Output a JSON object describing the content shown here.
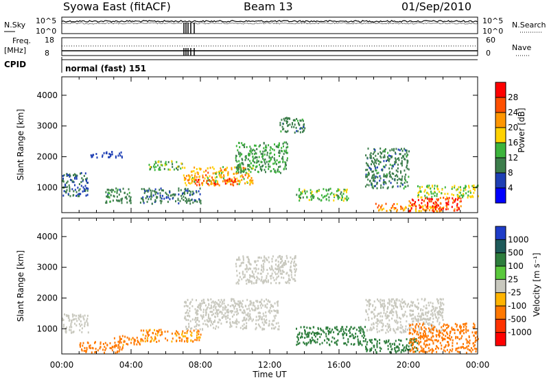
{
  "header": {
    "station": "Syowa East (fitACF)",
    "beam": "Beam 13",
    "date": "01/Sep/2010"
  },
  "status_panels": {
    "nsky_label": "N.Sky",
    "nsearch_label": "N.Search",
    "noise_tick_top": "10^5",
    "noise_tick_bottom": "10^0",
    "freq_label_1": "Freq.",
    "freq_label_2": "[MHz]",
    "freq_tick_top": "18",
    "freq_tick_bottom": "8",
    "nave_label": "Nave",
    "nave_tick_top": "60",
    "nave_tick_bottom": "0",
    "cpid_label": "CPID",
    "cpid_value": "normal (fast) 151"
  },
  "chart_data": [
    {
      "type": "heatmap",
      "name": "Power",
      "ylabel": "Slant Range [km]",
      "xlabel": "Time UT",
      "x_ticks": [
        "00:00",
        "04:00",
        "08:00",
        "12:00",
        "16:00",
        "20:00",
        "00:00"
      ],
      "y_ticks": [
        1000,
        2000,
        3000,
        4000
      ],
      "ylim": [
        180,
        4600
      ],
      "xlim_hours": [
        0,
        24
      ],
      "colorbar": {
        "label": "Power [dB]",
        "ticks": [
          4,
          8,
          12,
          16,
          20,
          24,
          28
        ],
        "range": [
          0,
          32
        ],
        "colors": [
          "#0000ff",
          "#1e3fb4",
          "#3c7d4b",
          "#3cb43c",
          "#ffd200",
          "#ff9600",
          "#ff5000",
          "#ff0000"
        ]
      },
      "regions": [
        {
          "t0": 0.0,
          "t1": 1.5,
          "r0": 700,
          "r1": 1500,
          "value": 8
        },
        {
          "t0": 1.6,
          "t1": 3.5,
          "r0": 2000,
          "r1": 2200,
          "value": 6
        },
        {
          "t0": 2.5,
          "t1": 4.0,
          "r0": 500,
          "r1": 1000,
          "value": 10
        },
        {
          "t0": 4.5,
          "t1": 8.0,
          "r0": 500,
          "r1": 1000,
          "value": 9
        },
        {
          "t0": 5.0,
          "t1": 7.0,
          "r0": 1600,
          "r1": 1900,
          "value": 14
        },
        {
          "t0": 7.0,
          "t1": 11.0,
          "r0": 1100,
          "r1": 1700,
          "value": 20
        },
        {
          "t0": 7.5,
          "t1": 10.0,
          "r0": 1100,
          "r1": 1300,
          "value": 26
        },
        {
          "t0": 10.0,
          "t1": 13.0,
          "r0": 1500,
          "r1": 2500,
          "value": 12
        },
        {
          "t0": 12.5,
          "t1": 14.0,
          "r0": 2800,
          "r1": 3300,
          "value": 10
        },
        {
          "t0": 13.5,
          "t1": 16.5,
          "r0": 600,
          "r1": 1000,
          "value": 14
        },
        {
          "t0": 17.5,
          "t1": 20.0,
          "r0": 1000,
          "r1": 2300,
          "value": 10
        },
        {
          "t0": 18.0,
          "t1": 22.0,
          "r0": 250,
          "r1": 500,
          "value": 22
        },
        {
          "t0": 20.0,
          "t1": 23.0,
          "r0": 250,
          "r1": 700,
          "value": 28
        },
        {
          "t0": 20.5,
          "t1": 24.0,
          "r0": 700,
          "r1": 1100,
          "value": 16
        }
      ]
    },
    {
      "type": "heatmap",
      "name": "Velocity",
      "ylabel": "Slant Range [km]",
      "xlabel": "Time UT",
      "x_ticks": [
        "00:00",
        "04:00",
        "08:00",
        "12:00",
        "16:00",
        "20:00",
        "00:00"
      ],
      "y_ticks": [
        1000,
        2000,
        3000,
        4000
      ],
      "ylim": [
        180,
        4600
      ],
      "xlim_hours": [
        0,
        24
      ],
      "colorbar": {
        "label": "Velocity [m s⁻¹]",
        "ticks": [
          "1000",
          "500",
          "100",
          "25",
          "-25",
          "-100",
          "-500",
          "-1000"
        ],
        "colors": [
          "#1e3cc8",
          "#1e5a5a",
          "#2d7d3c",
          "#5ac83c",
          "#c8c8be",
          "#ffb400",
          "#ff7800",
          "#ff3200",
          "#ff0000"
        ]
      },
      "regions": [
        {
          "t0": 0.0,
          "t1": 1.5,
          "r0": 900,
          "r1": 1500,
          "value": 0
        },
        {
          "t0": 1.0,
          "t1": 3.5,
          "r0": 250,
          "r1": 600,
          "value": -150
        },
        {
          "t0": 3.0,
          "t1": 4.5,
          "r0": 500,
          "r1": 800,
          "value": -120
        },
        {
          "t0": 4.5,
          "t1": 8.0,
          "r0": 600,
          "r1": 1000,
          "value": -110
        },
        {
          "t0": 7.0,
          "t1": 12.5,
          "r0": 1000,
          "r1": 2000,
          "value": 0
        },
        {
          "t0": 10.0,
          "t1": 13.5,
          "r0": 2500,
          "r1": 3400,
          "value": 5
        },
        {
          "t0": 13.5,
          "t1": 17.5,
          "r0": 500,
          "r1": 1100,
          "value": 150
        },
        {
          "t0": 17.5,
          "t1": 20.5,
          "r0": 250,
          "r1": 700,
          "value": 400
        },
        {
          "t0": 17.5,
          "t1": 22.0,
          "r0": 900,
          "r1": 2000,
          "value": 0
        },
        {
          "t0": 20.0,
          "t1": 24.0,
          "r0": 250,
          "r1": 1200,
          "value": -400
        }
      ]
    }
  ]
}
